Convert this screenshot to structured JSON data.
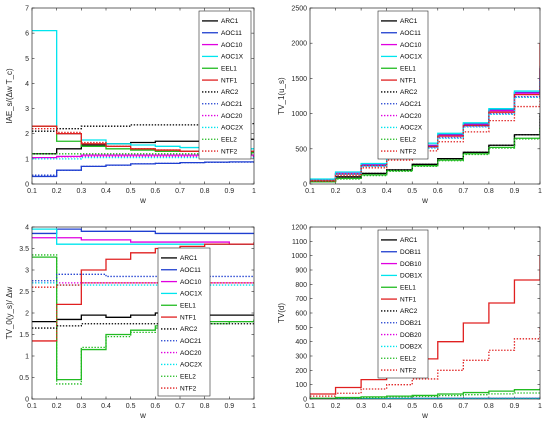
{
  "chart_data": [
    {
      "type": "line",
      "xlabel": "w",
      "ylabel": "IAE_s/(Δw T_c)",
      "xlim": [
        0.1,
        1
      ],
      "ylim": [
        0,
        7
      ],
      "xticks": [
        "0.1",
        "0.2",
        "0.3",
        "0.4",
        "0.5",
        "0.6",
        "0.7",
        "0.8",
        "0.9",
        "1"
      ],
      "yticks": [
        "0",
        "1",
        "2",
        "3",
        "4",
        "5",
        "6",
        "7"
      ],
      "legend": "top-right",
      "step": true,
      "x": [
        0.1,
        0.2,
        0.3,
        0.4,
        0.5,
        0.6,
        0.7,
        0.8,
        0.9,
        1
      ],
      "series": [
        {
          "name": "ARC1",
          "color": "#000000",
          "dash": "solid",
          "values": [
            1.2,
            1.4,
            1.55,
            1.6,
            1.65,
            1.7,
            1.7,
            1.75,
            1.78,
            1.8
          ]
        },
        {
          "name": "AOC11",
          "color": "#1f3fd0",
          "dash": "solid",
          "values": [
            0.3,
            0.55,
            0.7,
            0.75,
            0.8,
            0.82,
            0.85,
            0.87,
            0.88,
            0.9
          ]
        },
        {
          "name": "AOC10",
          "color": "#e000e0",
          "dash": "solid",
          "values": [
            1.05,
            1.1,
            1.15,
            1.15,
            1.15,
            1.15,
            1.15,
            1.15,
            1.15,
            1.15
          ]
        },
        {
          "name": "AOC1X",
          "color": "#00e5ee",
          "dash": "solid",
          "values": [
            6.1,
            2.0,
            1.75,
            1.6,
            1.55,
            1.5,
            1.45,
            1.45,
            1.4,
            1.4
          ]
        },
        {
          "name": "EEL1",
          "color": "#22bb22",
          "dash": "solid",
          "values": [
            2.3,
            1.7,
            1.5,
            1.4,
            1.35,
            1.3,
            1.3,
            1.25,
            1.25,
            1.25
          ]
        },
        {
          "name": "NTF1",
          "color": "#e02020",
          "dash": "solid",
          "values": [
            2.3,
            2.0,
            1.6,
            1.5,
            1.4,
            1.35,
            1.3,
            1.3,
            1.3,
            1.3
          ]
        },
        {
          "name": "ARC2",
          "color": "#000000",
          "dash": "dot",
          "values": [
            2.1,
            2.2,
            2.3,
            2.3,
            2.35,
            2.35,
            2.35,
            2.4,
            2.4,
            2.4
          ]
        },
        {
          "name": "AOC21",
          "color": "#1f3fd0",
          "dash": "dot",
          "values": [
            0.35,
            0.55,
            0.7,
            0.75,
            0.8,
            0.82,
            0.85,
            0.86,
            0.87,
            0.88
          ]
        },
        {
          "name": "AOC20",
          "color": "#e000e0",
          "dash": "dot",
          "values": [
            1.05,
            1.08,
            1.1,
            1.1,
            1.1,
            1.1,
            1.1,
            1.1,
            1.1,
            1.1
          ]
        },
        {
          "name": "AOC2X",
          "color": "#00e5ee",
          "dash": "dot",
          "values": [
            1.0,
            1.0,
            1.05,
            1.05,
            1.05,
            1.05,
            1.05,
            1.05,
            1.05,
            1.05
          ]
        },
        {
          "name": "EEL2",
          "color": "#22bb22",
          "dash": "dot",
          "values": [
            1.2,
            1.2,
            1.2,
            1.2,
            1.2,
            1.2,
            1.2,
            1.2,
            1.2,
            1.2
          ]
        },
        {
          "name": "NTF2",
          "color": "#e02020",
          "dash": "dot",
          "values": [
            2.2,
            2.05,
            1.65,
            1.5,
            1.4,
            1.35,
            1.3,
            1.3,
            1.3,
            1.3
          ]
        }
      ]
    },
    {
      "type": "line",
      "xlabel": "w",
      "ylabel": "TV_1(u_s)",
      "xlim": [
        0.1,
        1
      ],
      "ylim": [
        0,
        2500
      ],
      "xticks": [
        "0.1",
        "0.2",
        "0.3",
        "0.4",
        "0.5",
        "0.6",
        "0.7",
        "0.8",
        "0.9",
        "1"
      ],
      "yticks": [
        "0",
        "500",
        "1000",
        "1500",
        "2000",
        "2500"
      ],
      "legend": "top-left",
      "step": true,
      "x": [
        0.1,
        0.2,
        0.3,
        0.4,
        0.5,
        0.6,
        0.7,
        0.8,
        0.9,
        1
      ],
      "series": [
        {
          "name": "ARC1",
          "color": "#000000",
          "dash": "solid",
          "values": [
            40,
            100,
            150,
            200,
            280,
            360,
            450,
            550,
            700,
            1000
          ]
        },
        {
          "name": "AOC11",
          "color": "#1f3fd0",
          "dash": "solid",
          "values": [
            60,
            150,
            280,
            400,
            550,
            700,
            850,
            1050,
            1300,
            1650
          ]
        },
        {
          "name": "AOC10",
          "color": "#e000e0",
          "dash": "solid",
          "values": [
            60,
            150,
            270,
            390,
            540,
            690,
            840,
            1040,
            1290,
            1640
          ]
        },
        {
          "name": "AOC1X",
          "color": "#00e5ee",
          "dash": "solid",
          "values": [
            70,
            170,
            290,
            420,
            580,
            720,
            870,
            1070,
            1320,
            1680
          ]
        },
        {
          "name": "EEL1",
          "color": "#22bb22",
          "dash": "solid",
          "values": [
            30,
            80,
            130,
            190,
            260,
            340,
            430,
            520,
            650,
            800
          ]
        },
        {
          "name": "NTF1",
          "color": "#e02020",
          "dash": "solid",
          "values": [
            50,
            140,
            260,
            380,
            530,
            680,
            830,
            1020,
            1270,
            2000
          ]
        },
        {
          "name": "ARC2",
          "color": "#000000",
          "dash": "dot",
          "values": [
            40,
            100,
            150,
            200,
            280,
            360,
            450,
            550,
            700,
            1000
          ]
        },
        {
          "name": "AOC21",
          "color": "#1f3fd0",
          "dash": "dot",
          "values": [
            60,
            140,
            260,
            380,
            520,
            660,
            820,
            1000,
            1240,
            1500
          ]
        },
        {
          "name": "AOC20",
          "color": "#e000e0",
          "dash": "dot",
          "values": [
            60,
            140,
            255,
            375,
            515,
            655,
            815,
            995,
            1235,
            1490
          ]
        },
        {
          "name": "AOC2X",
          "color": "#00e5ee",
          "dash": "dot",
          "values": [
            60,
            140,
            250,
            370,
            510,
            650,
            810,
            990,
            1230,
            1480
          ]
        },
        {
          "name": "EEL2",
          "color": "#22bb22",
          "dash": "dot",
          "values": [
            30,
            70,
            120,
            180,
            250,
            330,
            420,
            510,
            640,
            790
          ]
        },
        {
          "name": "NTF2",
          "color": "#e02020",
          "dash": "dot",
          "values": [
            40,
            120,
            230,
            340,
            470,
            600,
            740,
            900,
            1100,
            1400
          ]
        }
      ]
    },
    {
      "type": "line",
      "xlabel": "w",
      "ylabel": "TV_0(y_s)/ Δw",
      "xlim": [
        0.1,
        1
      ],
      "ylim": [
        0,
        4
      ],
      "xticks": [
        "0.1",
        "0.2",
        "0.3",
        "0.4",
        "0.5",
        "0.6",
        "0.7",
        "0.8",
        "0.9",
        "1"
      ],
      "yticks": [
        "0",
        "0.5",
        "1",
        "1.5",
        "2",
        "2.5",
        "3",
        "3.5",
        "4"
      ],
      "legend": "bottom-right",
      "step": true,
      "x": [
        0.1,
        0.2,
        0.3,
        0.4,
        0.5,
        0.6,
        0.7,
        0.8,
        0.9,
        1
      ],
      "series": [
        {
          "name": "ARC1",
          "color": "#000000",
          "dash": "solid",
          "values": [
            1.8,
            1.85,
            1.95,
            1.9,
            1.95,
            2.0,
            1.95,
            1.95,
            1.95,
            1.95
          ]
        },
        {
          "name": "AOC11",
          "color": "#1f3fd0",
          "dash": "solid",
          "values": [
            3.85,
            3.95,
            3.9,
            3.9,
            3.9,
            3.85,
            3.85,
            3.85,
            3.85,
            3.85
          ]
        },
        {
          "name": "AOC10",
          "color": "#e000e0",
          "dash": "solid",
          "values": [
            3.75,
            3.75,
            3.7,
            3.7,
            3.65,
            3.65,
            3.65,
            3.65,
            3.6,
            3.6
          ]
        },
        {
          "name": "AOC1X",
          "color": "#00e5ee",
          "dash": "solid",
          "values": [
            3.95,
            3.6,
            3.6,
            3.6,
            3.6,
            3.6,
            3.6,
            3.6,
            3.6,
            3.6
          ]
        },
        {
          "name": "EEL1",
          "color": "#22bb22",
          "dash": "solid",
          "values": [
            3.3,
            0.45,
            1.15,
            1.5,
            1.6,
            1.7,
            1.75,
            1.8,
            1.8,
            1.85
          ]
        },
        {
          "name": "NTF1",
          "color": "#e02020",
          "dash": "solid",
          "values": [
            1.35,
            2.2,
            3.0,
            3.25,
            3.4,
            3.5,
            3.55,
            3.6,
            3.6,
            3.65
          ]
        },
        {
          "name": "ARC2",
          "color": "#000000",
          "dash": "dot",
          "values": [
            1.65,
            1.7,
            1.75,
            1.75,
            1.75,
            1.75,
            1.75,
            1.75,
            1.75,
            1.75
          ]
        },
        {
          "name": "AOC21",
          "color": "#1f3fd0",
          "dash": "dot",
          "values": [
            2.75,
            2.9,
            2.9,
            2.85,
            2.85,
            2.85,
            2.85,
            2.85,
            2.85,
            2.85
          ]
        },
        {
          "name": "AOC20",
          "color": "#e000e0",
          "dash": "dot",
          "values": [
            2.7,
            2.7,
            2.7,
            2.7,
            2.7,
            2.7,
            2.7,
            2.7,
            2.7,
            2.7
          ]
        },
        {
          "name": "AOC2X",
          "color": "#00e5ee",
          "dash": "dot",
          "values": [
            2.7,
            2.65,
            2.65,
            2.65,
            2.65,
            2.65,
            2.65,
            2.65,
            2.65,
            2.65
          ]
        },
        {
          "name": "EEL2",
          "color": "#22bb22",
          "dash": "dot",
          "values": [
            3.35,
            0.35,
            1.2,
            1.45,
            1.55,
            1.65,
            1.7,
            1.75,
            1.8,
            1.85
          ]
        },
        {
          "name": "NTF2",
          "color": "#e02020",
          "dash": "dot",
          "values": [
            2.6,
            2.65,
            2.7,
            2.7,
            2.7,
            2.7,
            2.7,
            2.7,
            2.7,
            2.7
          ]
        }
      ]
    },
    {
      "type": "line",
      "xlabel": "w",
      "ylabel": "TV(d)",
      "xlim": [
        0.1,
        1
      ],
      "ylim": [
        0,
        1200
      ],
      "xticks": [
        "0.1",
        "0.2",
        "0.3",
        "0.4",
        "0.5",
        "0.6",
        "0.7",
        "0.8",
        "0.9",
        "1"
      ],
      "yticks": [
        "0",
        "100",
        "200",
        "300",
        "400",
        "500",
        "600",
        "700",
        "800",
        "900",
        "1000",
        "1100",
        "1200"
      ],
      "legend": "top-left",
      "step": true,
      "x": [
        0.1,
        0.2,
        0.3,
        0.4,
        0.5,
        0.6,
        0.7,
        0.8,
        0.9,
        1
      ],
      "series": [
        {
          "name": "ARC1",
          "color": "#000000",
          "dash": "solid",
          "values": [
            2,
            2,
            2,
            2,
            2,
            3,
            3,
            3,
            3,
            3
          ]
        },
        {
          "name": "DOB11",
          "color": "#1f3fd0",
          "dash": "solid",
          "values": [
            2,
            2,
            2,
            3,
            3,
            3,
            3,
            3,
            3,
            3
          ]
        },
        {
          "name": "DOB10",
          "color": "#e000e0",
          "dash": "solid",
          "values": [
            2,
            2,
            2,
            3,
            3,
            3,
            3,
            3,
            3,
            3
          ]
        },
        {
          "name": "DOB1X",
          "color": "#00e5ee",
          "dash": "solid",
          "values": [
            2,
            2,
            2,
            3,
            3,
            3,
            3,
            3,
            3,
            3
          ]
        },
        {
          "name": "EEL1",
          "color": "#22bb22",
          "dash": "solid",
          "values": [
            5,
            10,
            15,
            20,
            25,
            35,
            45,
            55,
            65,
            75
          ]
        },
        {
          "name": "NTF1",
          "color": "#e02020",
          "dash": "solid",
          "values": [
            35,
            80,
            135,
            200,
            280,
            400,
            530,
            670,
            830,
            1000
          ]
        },
        {
          "name": "ARC2",
          "color": "#000000",
          "dash": "dot",
          "values": [
            2,
            2,
            2,
            2,
            2,
            3,
            3,
            3,
            3,
            3
          ]
        },
        {
          "name": "DOB21",
          "color": "#1f3fd0",
          "dash": "dot",
          "values": [
            2,
            2,
            2,
            2,
            3,
            3,
            3,
            3,
            3,
            3
          ]
        },
        {
          "name": "DOB20",
          "color": "#e000e0",
          "dash": "dot",
          "values": [
            2,
            2,
            2,
            2,
            3,
            3,
            3,
            3,
            3,
            3
          ]
        },
        {
          "name": "DOB2X",
          "color": "#00e5ee",
          "dash": "dot",
          "values": [
            2,
            2,
            2,
            2,
            3,
            3,
            3,
            3,
            3,
            3
          ]
        },
        {
          "name": "EEL2",
          "color": "#22bb22",
          "dash": "dot",
          "values": [
            3,
            6,
            10,
            14,
            18,
            24,
            30,
            36,
            42,
            48
          ]
        },
        {
          "name": "NTF2",
          "color": "#e02020",
          "dash": "dot",
          "values": [
            20,
            40,
            70,
            100,
            140,
            200,
            270,
            340,
            420,
            500
          ]
        }
      ]
    }
  ]
}
